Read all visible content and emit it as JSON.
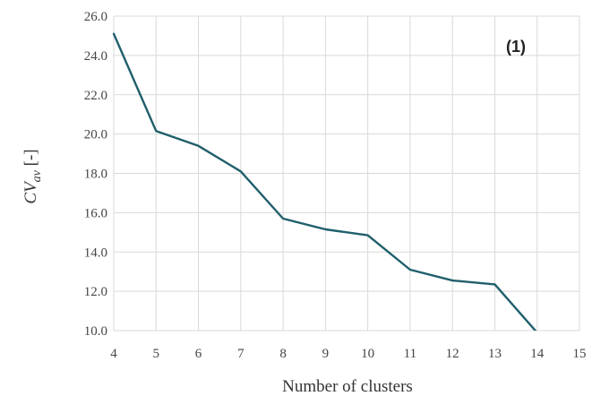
{
  "chart_data": {
    "type": "line",
    "title": "",
    "panel_label": "(1)",
    "xlabel": "Number of clusters",
    "ylabel_main": "CV",
    "ylabel_sub": "av",
    "ylabel_unit": " [-]",
    "xlim": [
      4,
      15
    ],
    "ylim": [
      10.0,
      26.0
    ],
    "x_ticks": [
      "4",
      "5",
      "6",
      "7",
      "8",
      "9",
      "10",
      "11",
      "12",
      "13",
      "14",
      "15"
    ],
    "y_ticks": [
      "10.0",
      "12.0",
      "14.0",
      "16.0",
      "18.0",
      "20.0",
      "22.0",
      "24.0",
      "26.0"
    ],
    "grid": true,
    "series": [
      {
        "x": [
          4,
          5,
          6,
          7,
          8,
          9,
          10,
          11,
          12,
          13,
          14
        ],
        "values": [
          25.1,
          20.15,
          19.4,
          18.1,
          15.7,
          15.15,
          14.85,
          13.1,
          12.55,
          12.35,
          9.9
        ],
        "color": "#1f5f6b"
      }
    ]
  }
}
